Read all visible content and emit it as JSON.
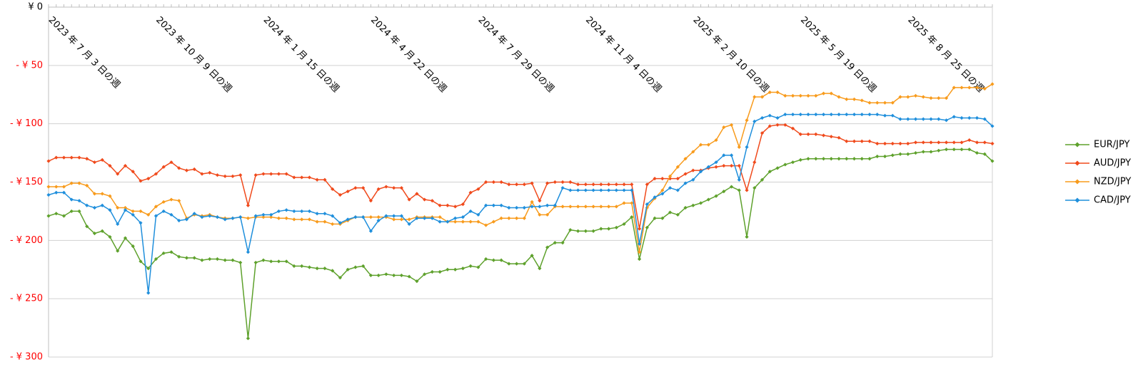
{
  "chart_data": {
    "type": "line",
    "categories": [
      "2023 年 7 月 3 日の週",
      null,
      null,
      null,
      null,
      null,
      null,
      null,
      null,
      null,
      null,
      null,
      null,
      null,
      "2023 年 10 月 9 日の週",
      null,
      null,
      null,
      null,
      null,
      null,
      null,
      null,
      null,
      null,
      null,
      null,
      null,
      "2024 年 1 月 15 日の週",
      null,
      null,
      null,
      null,
      null,
      null,
      null,
      null,
      null,
      null,
      null,
      null,
      null,
      "2024 年 4 月 22 日の週",
      null,
      null,
      null,
      null,
      null,
      null,
      null,
      null,
      null,
      null,
      null,
      null,
      null,
      "2024 年 7 月 29 日の週",
      null,
      null,
      null,
      null,
      null,
      null,
      null,
      null,
      null,
      null,
      null,
      null,
      null,
      "2024 年 11 月 4 日の週",
      null,
      null,
      null,
      null,
      null,
      null,
      null,
      null,
      null,
      null,
      null,
      null,
      null,
      "2025 年 2 月 10 日の週",
      null,
      null,
      null,
      null,
      null,
      null,
      null,
      null,
      null,
      null,
      null,
      null,
      null,
      "2025 年 5 月 19 日の週",
      null,
      null,
      null,
      null,
      null,
      null,
      null,
      null,
      null,
      null,
      null,
      null,
      null,
      "2025 年 8 月 25 日の週",
      null,
      null,
      null,
      null,
      null,
      null,
      null,
      null,
      null,
      null,
      null
    ],
    "series": [
      {
        "name": "EUR/JPY",
        "color": "#5ea12c",
        "values": [
          -179,
          -177,
          -179,
          -175,
          -175,
          -188,
          -194,
          -192,
          -197,
          -209,
          -198,
          -205,
          -218,
          -224,
          -216,
          -211,
          -210,
          -214,
          -215,
          -215,
          -217,
          -216,
          -216,
          -217,
          -217,
          -219,
          -284,
          -219,
          -217,
          -218,
          -218,
          -218,
          -222,
          -222,
          -223,
          -224,
          -224,
          -226,
          -232,
          -225,
          -223,
          -222,
          -230,
          -230,
          -229,
          -230,
          -230,
          -231,
          -235,
          -229,
          -227,
          -227,
          -225,
          -225,
          -224,
          -222,
          -223,
          -216,
          -217,
          -217,
          -220,
          -220,
          -220,
          -213,
          -224,
          -206,
          -202,
          -202,
          -191,
          -192,
          -192,
          -192,
          -190,
          -190,
          -189,
          -186,
          -180,
          -216,
          -189,
          -181,
          -181,
          -176,
          -178,
          -172,
          -170,
          -168,
          -165,
          -162,
          -158,
          -154,
          -157,
          -197,
          -155,
          -148,
          -141,
          -138,
          -135,
          -133,
          -131,
          -130,
          -130,
          -130,
          -130,
          -130,
          -130,
          -130,
          -130,
          -130,
          -128,
          -128,
          -127,
          -126,
          -126,
          -125,
          -124,
          -124,
          -123,
          -122,
          -122,
          -122,
          -122,
          -125,
          -126,
          -132
        ]
      },
      {
        "name": "AUD/JPY",
        "color": "#f04a1c",
        "values": [
          -132,
          -129,
          -129,
          -129,
          -129,
          -130,
          -133,
          -131,
          -136,
          -143,
          -136,
          -141,
          -149,
          -147,
          -143,
          -137,
          -133,
          -138,
          -140,
          -139,
          -143,
          -142,
          -144,
          -145,
          -145,
          -144,
          -170,
          -144,
          -143,
          -143,
          -143,
          -143,
          -146,
          -146,
          -146,
          -148,
          -148,
          -156,
          -161,
          -158,
          -155,
          -155,
          -166,
          -156,
          -154,
          -155,
          -155,
          -165,
          -160,
          -165,
          -166,
          -170,
          -170,
          -171,
          -169,
          -159,
          -156,
          -150,
          -150,
          -150,
          -152,
          -152,
          -152,
          -151,
          -166,
          -151,
          -150,
          -150,
          -150,
          -152,
          -152,
          -152,
          -152,
          -152,
          -152,
          -152,
          -152,
          -190,
          -152,
          -147,
          -147,
          -147,
          -147,
          -143,
          -140,
          -140,
          -138,
          -137,
          -136,
          -136,
          -136,
          -157,
          -133,
          -108,
          -102,
          -101,
          -101,
          -104,
          -109,
          -109,
          -109,
          -110,
          -111,
          -112,
          -115,
          -115,
          -115,
          -115,
          -117,
          -117,
          -117,
          -117,
          -117,
          -116,
          -116,
          -116,
          -116,
          -116,
          -116,
          -116,
          -114,
          -116,
          -116,
          -117
        ]
      },
      {
        "name": "NZD/JPY",
        "color": "#f89b1c",
        "values": [
          -154,
          -154,
          -154,
          -151,
          -151,
          -153,
          -160,
          -160,
          -162,
          -172,
          -172,
          -175,
          -175,
          -178,
          -171,
          -167,
          -165,
          -166,
          -181,
          -178,
          -179,
          -178,
          -180,
          -181,
          -181,
          -180,
          -181,
          -180,
          -180,
          -180,
          -181,
          -181,
          -182,
          -182,
          -182,
          -184,
          -184,
          -186,
          -186,
          -183,
          -180,
          -180,
          -180,
          -180,
          -180,
          -182,
          -182,
          -182,
          -180,
          -180,
          -180,
          -180,
          -184,
          -184,
          -184,
          -184,
          -184,
          -187,
          -184,
          -181,
          -181,
          -181,
          -181,
          -167,
          -178,
          -178,
          -171,
          -171,
          -171,
          -171,
          -171,
          -171,
          -171,
          -171,
          -171,
          -168,
          -168,
          -210,
          -172,
          -164,
          -157,
          -145,
          -137,
          -130,
          -124,
          -118,
          -118,
          -114,
          -103,
          -101,
          -120,
          -97,
          -77,
          -77,
          -73,
          -73,
          -76,
          -76,
          -76,
          -76,
          -76,
          -74,
          -74,
          -77,
          -79,
          -79,
          -80,
          -82,
          -82,
          -82,
          -82,
          -77,
          -77,
          -76,
          -77,
          -78,
          -78,
          -78,
          -69,
          -69,
          -69,
          -69,
          -70,
          -66
        ]
      },
      {
        "name": "CAD/JPY",
        "color": "#1f8fdc",
        "values": [
          -161,
          -159,
          -159,
          -165,
          -166,
          -170,
          -172,
          -170,
          -174,
          -186,
          -174,
          -178,
          -185,
          -245,
          -179,
          -175,
          -178,
          -183,
          -182,
          -177,
          -180,
          -179,
          -180,
          -182,
          -181,
          -180,
          -210,
          -179,
          -178,
          -178,
          -175,
          -174,
          -175,
          -175,
          -175,
          -177,
          -177,
          -179,
          -185,
          -182,
          -180,
          -180,
          -192,
          -183,
          -179,
          -179,
          -179,
          -186,
          -181,
          -181,
          -181,
          -184,
          -184,
          -181,
          -180,
          -175,
          -178,
          -170,
          -170,
          -170,
          -172,
          -172,
          -172,
          -171,
          -171,
          -170,
          -170,
          -155,
          -157,
          -157,
          -157,
          -157,
          -157,
          -157,
          -157,
          -157,
          -157,
          -203,
          -169,
          -163,
          -160,
          -155,
          -157,
          -151,
          -148,
          -141,
          -137,
          -133,
          -127,
          -127,
          -148,
          -120,
          -98,
          -95,
          -93,
          -95,
          -92,
          -92,
          -92,
          -92,
          -92,
          -92,
          -92,
          -92,
          -92,
          -92,
          -92,
          -92,
          -92,
          -93,
          -93,
          -96,
          -96,
          -96,
          -96,
          -96,
          -96,
          -97,
          -94,
          -95,
          -95,
          -95,
          -96,
          -102
        ]
      }
    ],
    "ylim": [
      -300,
      0
    ],
    "yticks": [
      {
        "value": 0,
        "label": "¥ 0"
      },
      {
        "value": -50,
        "label": "- ¥ 50"
      },
      {
        "value": -100,
        "label": "- ¥ 100"
      },
      {
        "value": -150,
        "label": "- ¥ 150"
      },
      {
        "value": -200,
        "label": "- ¥ 200"
      },
      {
        "value": -250,
        "label": "- ¥ 250"
      },
      {
        "value": -300,
        "label": "- ¥ 300"
      }
    ],
    "negative_label_color": "#ff0000",
    "grid": true,
    "legend": "right"
  }
}
